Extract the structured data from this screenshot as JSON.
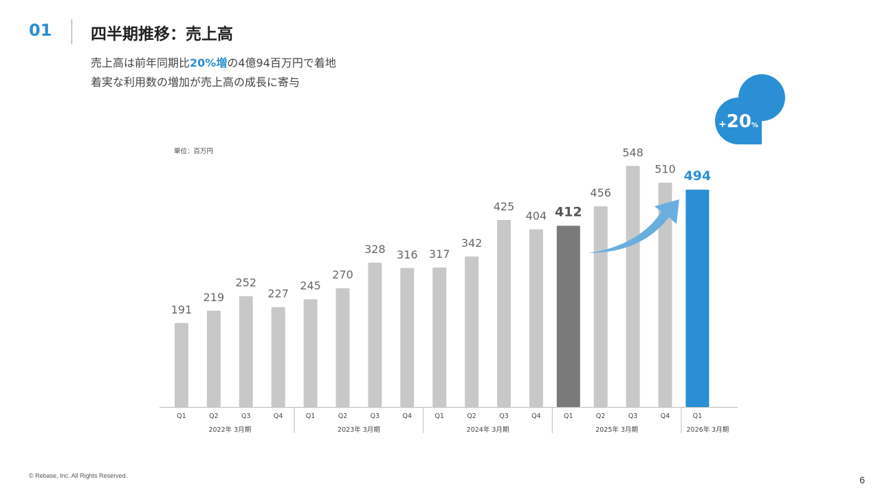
{
  "header": {
    "section_number": "01",
    "title": "四半期推移：売上高",
    "subtitle_line1_pre": "売上高は前年同期比",
    "subtitle_line1_highlight": "20%増",
    "subtitle_line1_post": "の4億94百万円で着地",
    "subtitle_line2": "着実な利用数の増加が売上高の成長に寄与"
  },
  "chart_data": {
    "type": "bar",
    "unit_label": "単位：百万円",
    "categories": [
      "Q1",
      "Q2",
      "Q3",
      "Q4",
      "Q1",
      "Q2",
      "Q3",
      "Q4",
      "Q1",
      "Q2",
      "Q3",
      "Q4",
      "Q1",
      "Q2",
      "Q3",
      "Q4",
      "Q1"
    ],
    "values": [
      191,
      219,
      252,
      227,
      245,
      270,
      328,
      316,
      317,
      342,
      425,
      404,
      412,
      456,
      548,
      510,
      494
    ],
    "groups": [
      {
        "label": "2022年 3月期",
        "start": 0,
        "end": 3
      },
      {
        "label": "2023年 3月期",
        "start": 4,
        "end": 7
      },
      {
        "label": "2024年 3月期",
        "start": 8,
        "end": 11
      },
      {
        "label": "2025年 3月期",
        "start": 12,
        "end": 15
      },
      {
        "label": "2026年 3月期",
        "start": 16,
        "end": 16
      }
    ],
    "highlight_prev_index": 12,
    "highlight_current_index": 16,
    "ylim": [
      0,
      600
    ],
    "badge": {
      "sign": "+",
      "value": "20",
      "unit": "%"
    },
    "colors": {
      "bar": "#c8c8c8",
      "prev": "#7a7a7a",
      "current": "#2a8fd4",
      "arrow": "#6aaedf"
    }
  },
  "footer": {
    "copyright": "© Rebase, Inc. All Rights Reserved.",
    "page_number": "6"
  }
}
